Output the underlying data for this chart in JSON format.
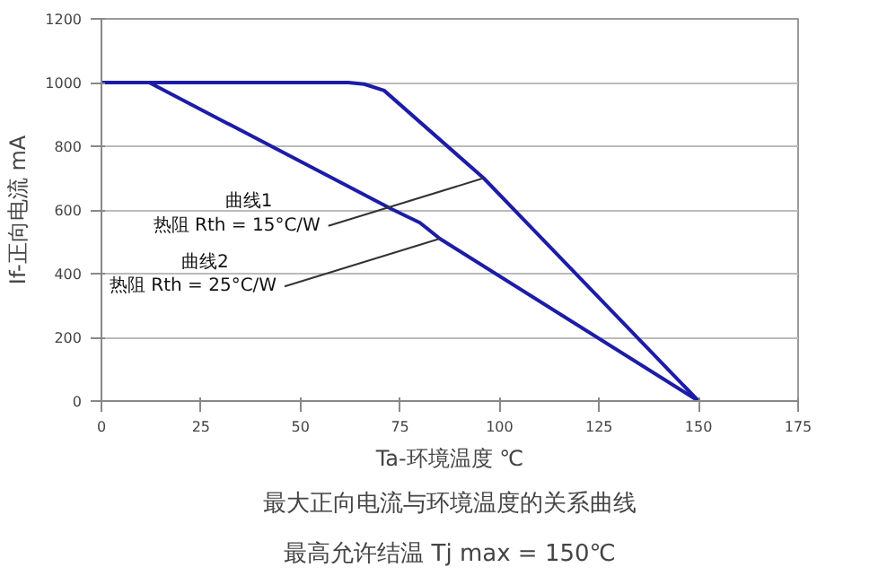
{
  "chart_data": {
    "type": "line",
    "title": "最大正向电流与环境温度的关系曲线",
    "subtitle": "最高允许结温 Tj max = 150℃",
    "xlabel": "Ta-环境温度 ℃",
    "ylabel": "If-正向电流 mA",
    "series": [
      {
        "color": "#1c1ca8",
        "x": [
          0,
          62,
          66,
          71,
          96,
          150
        ],
        "values": [
          1000,
          1000,
          995,
          975,
          700,
          0
        ]
      },
      {
        "color": "#1c1ca8",
        "x": [
          0,
          12,
          73,
          80,
          85,
          150
        ],
        "values": [
          1000,
          1000,
          602,
          560,
          510,
          0
        ]
      }
    ],
    "annotations": [
      {
        "text": "曲线1\n热阻 Rth = 15°C/W",
        "x": 96,
        "y": 700
      },
      {
        "text": "曲线2\n热阻 Rth = 25°C/W",
        "x": 85,
        "y": 510
      }
    ],
    "xlim": [
      0,
      175
    ],
    "xticks": [
      0,
      25,
      50,
      75,
      100,
      125,
      150,
      175
    ],
    "ylim": [
      0,
      1200
    ],
    "yticks": [
      0,
      200,
      400,
      600,
      800,
      1000,
      1200
    ],
    "grid": "y",
    "marker": "none",
    "line_style": "solid"
  }
}
